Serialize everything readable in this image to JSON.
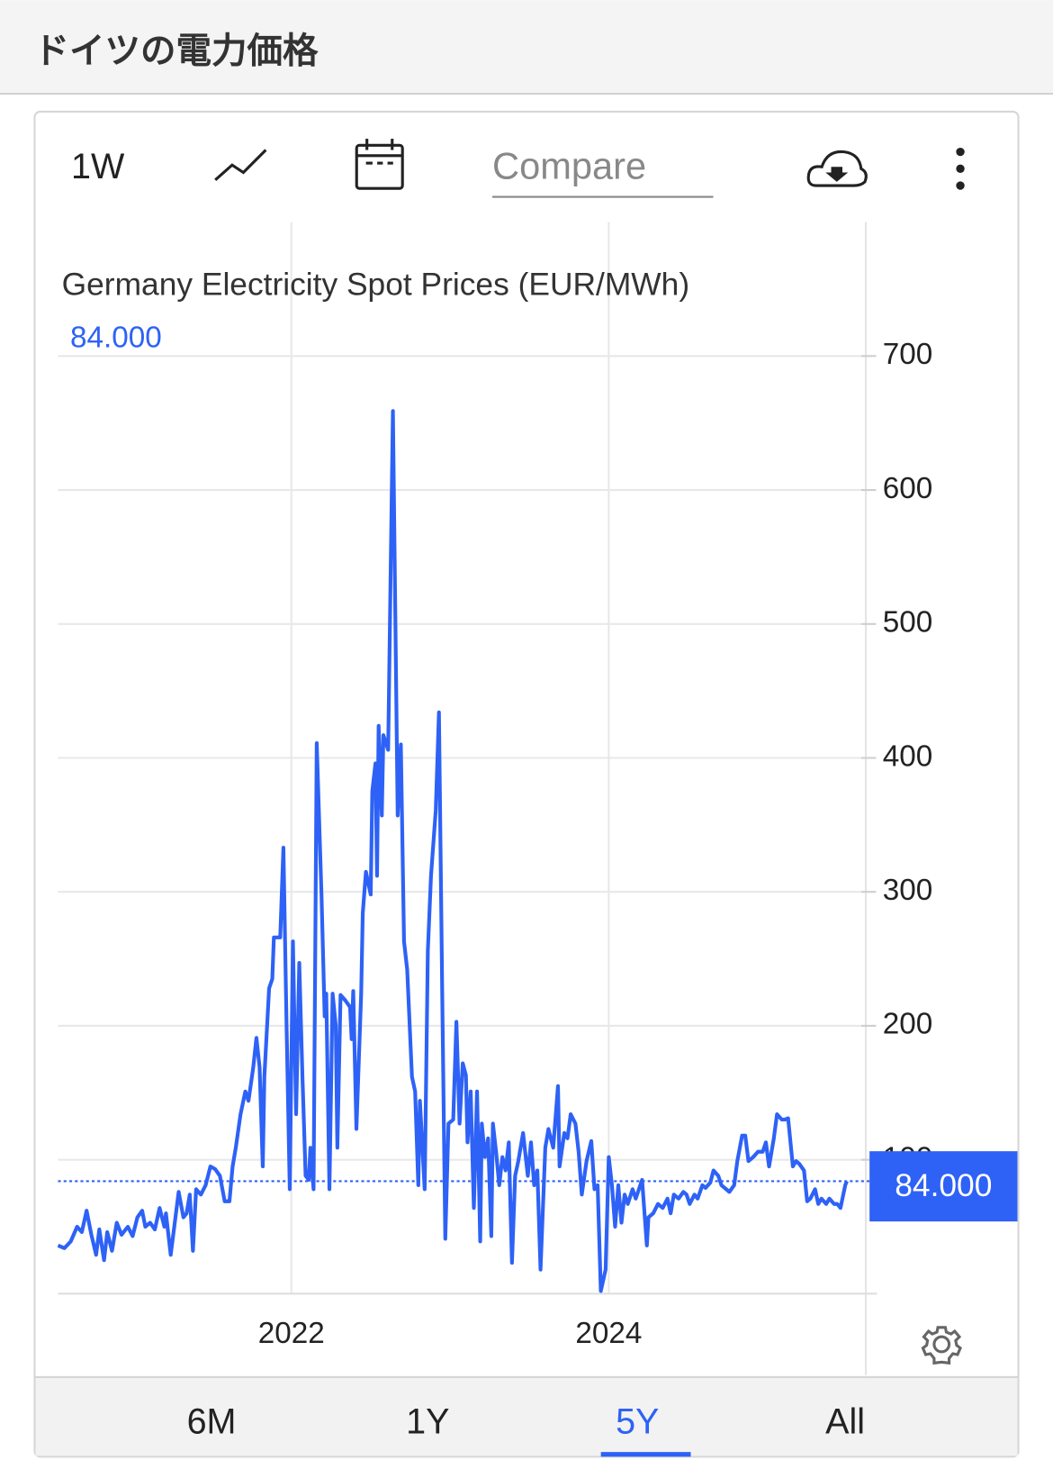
{
  "header": {
    "title": "ドイツの電力価格"
  },
  "toolbar": {
    "interval": "1W",
    "compare": "Compare"
  },
  "ranges": [
    "6M",
    "1Y",
    "5Y",
    "All"
  ],
  "chart_data": {
    "type": "line",
    "title": "Germany Electricity Spot Prices (EUR/MWh)",
    "last_label": "84.000",
    "color": "#2e62f6",
    "xlim": [
      2020.53,
      2025.59
    ],
    "xticks": [
      2022,
      2024
    ],
    "ylim": [
      0,
      800
    ],
    "yticks": [
      100,
      200,
      300,
      400,
      500,
      600,
      700
    ],
    "grid": true,
    "x": [
      2020.53,
      2020.57,
      2020.61,
      2020.65,
      2020.68,
      2020.71,
      2020.74,
      2020.77,
      2020.79,
      2020.82,
      2020.84,
      2020.87,
      2020.9,
      2020.93,
      2020.97,
      2021.0,
      2021.03,
      2021.06,
      2021.08,
      2021.11,
      2021.14,
      2021.17,
      2021.2,
      2021.21,
      2021.24,
      2021.29,
      2021.32,
      2021.34,
      2021.36,
      2021.38,
      2021.4,
      2021.43,
      2021.46,
      2021.49,
      2021.52,
      2021.55,
      2021.58,
      2021.61,
      2021.63,
      2021.65,
      2021.68,
      2021.71,
      2021.73,
      2021.76,
      2021.78,
      2021.8,
      2021.82,
      2021.83,
      2021.86,
      2021.88,
      2021.89,
      2021.92,
      2021.93,
      2021.95,
      2021.97,
      2021.99,
      2022.01,
      2022.03,
      2022.05,
      2022.07,
      2022.09,
      2022.11,
      2022.12,
      2022.14,
      2022.16,
      2022.19,
      2022.21,
      2022.22,
      2022.24,
      2022.26,
      2022.28,
      2022.29,
      2022.31,
      2022.34,
      2022.37,
      2022.38,
      2022.39,
      2022.41,
      2022.44,
      2022.45,
      2022.47,
      2022.5,
      2022.51,
      2022.53,
      2022.54,
      2022.55,
      2022.57,
      2022.58,
      2022.61,
      2022.64,
      2022.67,
      2022.69,
      2022.71,
      2022.73,
      2022.76,
      2022.78,
      2022.8,
      2022.81,
      2022.84,
      2022.86,
      2022.88,
      2022.91,
      2022.93,
      2022.95,
      2022.97,
      2022.99,
      2023.02,
      2023.04,
      2023.06,
      2023.08,
      2023.1,
      2023.11,
      2023.13,
      2023.15,
      2023.17,
      2023.19,
      2023.2,
      2023.22,
      2023.24,
      2023.26,
      2023.27,
      2023.29,
      2023.31,
      2023.33,
      2023.35,
      2023.37,
      2023.39,
      2023.41,
      2023.43,
      2023.46,
      2023.49,
      2023.51,
      2023.53,
      2023.55,
      2023.57,
      2023.6,
      2023.62,
      2023.65,
      2023.68,
      2023.69,
      2023.72,
      2023.74,
      2023.76,
      2023.79,
      2023.81,
      2023.83,
      2023.86,
      2023.89,
      2023.91,
      2023.93,
      2023.95,
      2023.98,
      2024.0,
      2024.02,
      2024.04,
      2024.06,
      2024.08,
      2024.1,
      2024.12,
      2024.15,
      2024.17,
      2024.19,
      2024.21,
      2024.24,
      2024.25,
      2024.28,
      2024.31,
      2024.34,
      2024.37,
      2024.39,
      2024.41,
      2024.44,
      2024.47,
      2024.49,
      2024.51,
      2024.54,
      2024.56,
      2024.59,
      2024.61,
      2024.64,
      2024.66,
      2024.69,
      2024.71,
      2024.74,
      2024.76,
      2024.79,
      2024.81,
      2024.84,
      2024.86,
      2024.88,
      2024.91,
      2024.94,
      2024.97,
      2024.99,
      2025.01,
      2025.04,
      2025.06,
      2025.09,
      2025.11,
      2025.13,
      2025.16,
      2025.18,
      2025.2,
      2025.23,
      2025.25,
      2025.27,
      2025.3,
      2025.32,
      2025.34,
      2025.37,
      2025.39,
      2025.42,
      2025.44,
      2025.46,
      2025.49,
      2025.5
    ],
    "values": [
      36,
      34,
      39,
      50,
      46,
      62,
      44,
      29,
      48,
      25,
      46,
      32,
      53,
      44,
      50,
      43,
      57,
      62,
      50,
      53,
      48,
      64,
      50,
      60,
      29,
      76,
      57,
      60,
      74,
      32,
      78,
      74,
      81,
      95,
      93,
      88,
      69,
      69,
      95,
      109,
      134,
      151,
      144,
      169,
      191,
      169,
      95,
      162,
      228,
      235,
      266,
      266,
      266,
      333,
      200,
      78,
      263,
      134,
      247,
      162,
      88,
      85,
      109,
      78,
      411,
      298,
      207,
      224,
      78,
      224,
      200,
      109,
      223,
      219,
      214,
      190,
      226,
      123,
      224,
      284,
      315,
      298,
      375,
      396,
      312,
      424,
      357,
      417,
      406,
      659,
      357,
      410,
      263,
      242,
      162,
      151,
      81,
      144,
      78,
      256,
      312,
      361,
      434,
      231,
      41,
      127,
      130,
      203,
      127,
      172,
      163,
      113,
      151,
      64,
      151,
      39,
      127,
      102,
      116,
      43,
      127,
      106,
      81,
      102,
      92,
      113,
      23,
      88,
      99,
      120,
      88,
      113,
      81,
      92,
      18,
      109,
      123,
      109,
      155,
      95,
      120,
      116,
      134,
      127,
      106,
      74,
      99,
      114,
      78,
      81,
      2,
      18,
      102,
      81,
      50,
      81,
      53,
      74,
      67,
      78,
      71,
      78,
      85,
      36,
      57,
      60,
      67,
      64,
      71,
      60,
      74,
      71,
      76,
      74,
      67,
      74,
      71,
      81,
      79,
      83,
      92,
      88,
      81,
      78,
      76,
      81,
      99,
      118,
      118,
      99,
      102,
      106,
      106,
      113,
      95,
      116,
      134,
      130,
      130,
      131,
      95,
      99,
      97,
      92,
      69,
      71,
      78,
      67,
      71,
      67,
      71,
      67,
      67,
      64,
      81,
      84
    ]
  }
}
